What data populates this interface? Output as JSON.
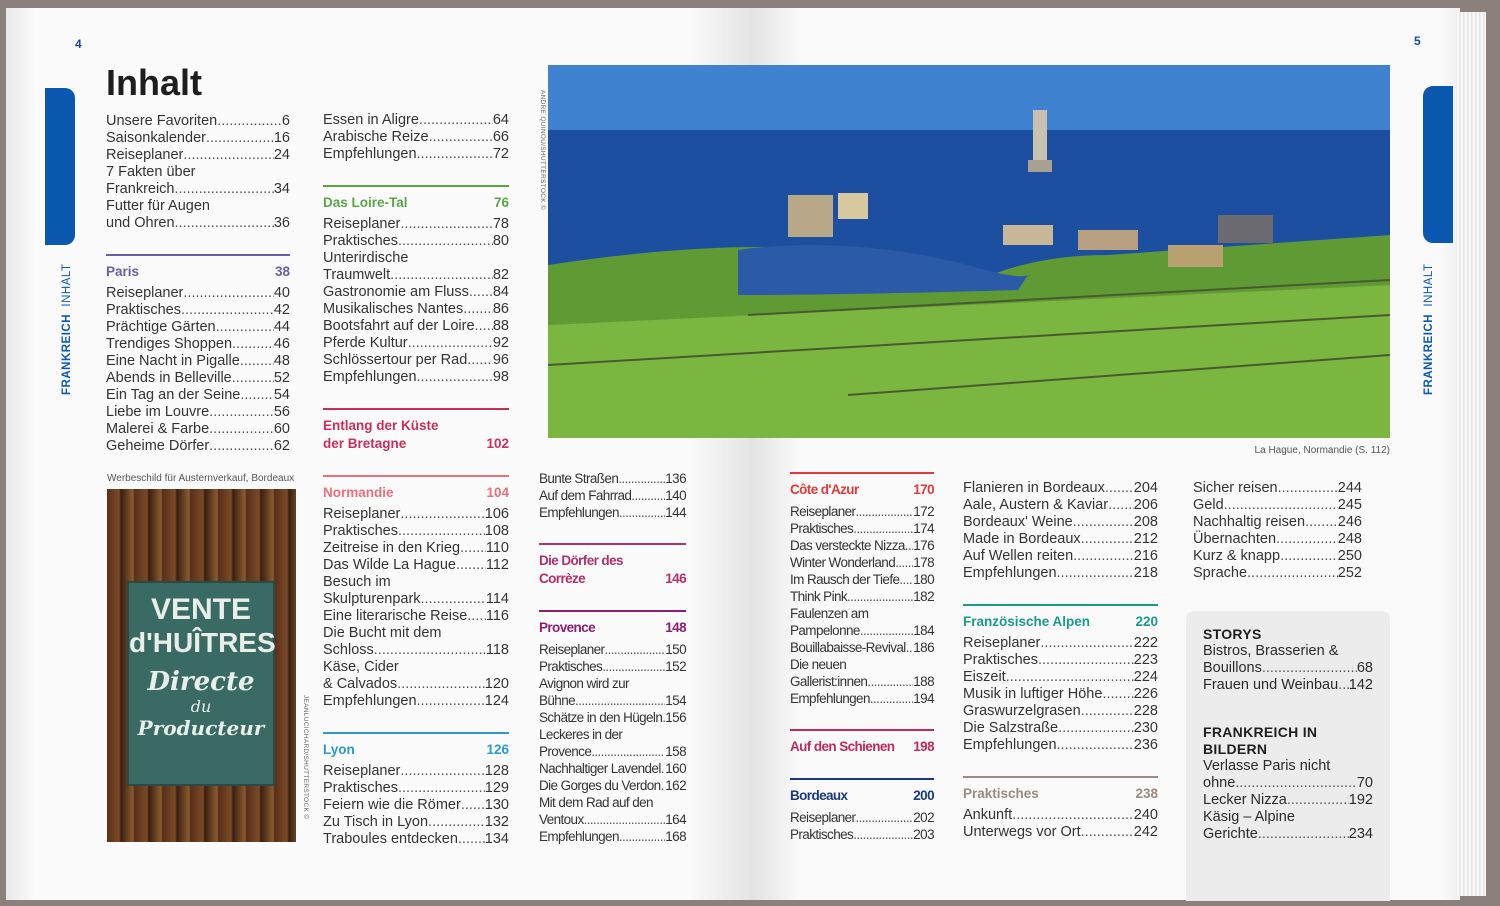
{
  "left_page": {
    "number": "4",
    "title": "Inhalt",
    "tab_label_bold": "FRANKREICH",
    "tab_label": "INHALT",
    "photo_credit": "JEANLUCICHARD/SHUTTERSTOCK ©",
    "image_caption": "Werbeschild für Austernverkauf, Bordeaux",
    "sign_lines": [
      "VENTE",
      "d'HUÎTRES",
      "Directe",
      "du",
      "Producteur"
    ]
  },
  "right_page": {
    "number": "5",
    "tab_label_bold": "FRANKREICH",
    "tab_label": "INHALT",
    "photo_credit": "ANDRE QUINOU/SHUTTERSTOCK ©",
    "photo_caption": "La Hague, Normandie (S. 112)"
  },
  "columns": {
    "c1": [
      {
        "e": [
          [
            "Unsere Favoriten",
            "6"
          ],
          [
            "Saisonkalender",
            "16"
          ],
          [
            "Reiseplaner",
            "24"
          ],
          [
            "7 Fakten über\nFrankreich",
            "34"
          ],
          [
            "Futter für Augen\nund Ohren",
            "36"
          ]
        ]
      },
      {
        "title": "Paris",
        "page": "38",
        "color": "#6b5ea8",
        "e": [
          [
            "Reiseplaner",
            "40"
          ],
          [
            "Praktisches",
            "42"
          ],
          [
            "Prächtige Gärten",
            "44"
          ],
          [
            "Trendiges Shoppen",
            "46"
          ],
          [
            "Eine Nacht in Pigalle",
            "48"
          ],
          [
            "Abends in Belleville",
            "52"
          ],
          [
            "Ein Tag an der Seine",
            "54"
          ],
          [
            "Liebe im Louvre",
            "56"
          ],
          [
            "Malerei & Farbe",
            "60"
          ],
          [
            "Geheime Dörfer",
            "62"
          ]
        ]
      }
    ],
    "c2": [
      {
        "e": [
          [
            "Essen in Aligre",
            "64"
          ],
          [
            "Arabische Reize",
            "66"
          ],
          [
            "Empfehlungen",
            "72"
          ]
        ]
      },
      {
        "title": "Das Loire-Tal",
        "page": "76",
        "color": "#5aa646",
        "e": [
          [
            "Reiseplaner",
            "78"
          ],
          [
            "Praktisches",
            "80"
          ],
          [
            "Unterirdische\nTraumwelt",
            "82"
          ],
          [
            "Gastronomie am Fluss",
            "84"
          ],
          [
            "Musikalisches Nantes",
            "86"
          ],
          [
            "Bootsfahrt auf der Loire",
            "88"
          ],
          [
            "Pferde Kultur",
            "92"
          ],
          [
            "Schlössertour per Rad",
            "96"
          ],
          [
            "Empfehlungen",
            "98"
          ]
        ]
      },
      {
        "title": "Entlang der Küste\nder Bretagne",
        "page": "102",
        "color": "#c8305a",
        "e": []
      },
      {
        "title": "Normandie",
        "page": "104",
        "color": "#e8707a",
        "e": [
          [
            "Reiseplaner",
            "106"
          ],
          [
            "Praktisches",
            "108"
          ],
          [
            "Zeitreise in den Krieg",
            "110"
          ],
          [
            "Das Wilde La Hague",
            "112"
          ],
          [
            "Besuch im\nSkulpturenpark",
            "114"
          ],
          [
            "Eine literarische Reise",
            "116"
          ],
          [
            "Die Bucht mit dem\nSchloss",
            "118"
          ],
          [
            "Käse, Cider\n& Calvados",
            "120"
          ],
          [
            "Empfehlungen",
            "124"
          ]
        ]
      },
      {
        "title": "Lyon",
        "page": "126",
        "color": "#2a9ac8",
        "e": [
          [
            "Reiseplaner",
            "128"
          ],
          [
            "Praktisches",
            "129"
          ],
          [
            "Feiern wie die Römer",
            "130"
          ],
          [
            "Zu Tisch in Lyon",
            "132"
          ],
          [
            "Traboules entdecken",
            "134"
          ]
        ]
      }
    ],
    "c3": [
      {
        "e": [
          [
            "Bunte Straßen",
            "136"
          ],
          [
            "Auf dem Fahrrad",
            "140"
          ],
          [
            "Empfehlungen",
            "144"
          ]
        ]
      },
      {
        "title": "Die Dörfer des\nCorrèze",
        "page": "146",
        "color": "#b0306a",
        "e": []
      },
      {
        "title": "Provence",
        "page": "148",
        "color": "#8a2070",
        "e": [
          [
            "Reiseplaner",
            "150"
          ],
          [
            "Praktisches",
            "152"
          ],
          [
            "Avignon wird zur\nBühne",
            "154"
          ],
          [
            "Schätze in den Hügeln",
            "156"
          ],
          [
            "Leckeres in der\nProvence",
            "158"
          ],
          [
            "Nachhaltiger Lavendel",
            "160"
          ],
          [
            "Die Gorges du Verdon",
            "162"
          ],
          [
            "Mit dem Rad auf den\nVentoux",
            "164"
          ],
          [
            "Empfehlungen",
            "168"
          ]
        ]
      }
    ],
    "c4": [
      {
        "title": "Côte d'Azur",
        "page": "170",
        "color": "#e03a3a",
        "e": [
          [
            "Reiseplaner",
            "172"
          ],
          [
            "Praktisches",
            "174"
          ],
          [
            "Das versteckte Nizza",
            "176"
          ],
          [
            "Winter Wonderland",
            "178"
          ],
          [
            "Im Rausch der Tiefe",
            "180"
          ],
          [
            "Think Pink",
            "182"
          ],
          [
            "Faulenzen am\nPampelonne",
            "184"
          ],
          [
            "Bouillabaisse-Revival",
            "186"
          ],
          [
            "Die neuen\nGallerist:innen",
            "188"
          ],
          [
            "Empfehlungen",
            "194"
          ]
        ]
      },
      {
        "title": "Auf den Schienen",
        "page": "198",
        "color": "#c02a5a",
        "e": []
      },
      {
        "title": "Bordeaux",
        "page": "200",
        "color": "#1a3a7a",
        "e": [
          [
            "Reiseplaner",
            "202"
          ],
          [
            "Praktisches",
            "203"
          ]
        ]
      }
    ],
    "c5": [
      {
        "e": [
          [
            "Flanieren in Bordeaux",
            "204"
          ],
          [
            "Aale, Austern & Kaviar",
            "206"
          ],
          [
            "Bordeaux' Weine",
            "208"
          ],
          [
            "Made in Bordeaux",
            "212"
          ],
          [
            "Auf Wellen reiten",
            "216"
          ],
          [
            "Empfehlungen",
            "218"
          ]
        ]
      },
      {
        "title": "Französische Alpen",
        "page": "220",
        "color": "#1a9a8a",
        "e": [
          [
            "Reiseplaner",
            "222"
          ],
          [
            "Praktisches",
            "223"
          ],
          [
            "Eiszeit",
            "224"
          ],
          [
            "Musik in luftiger Höhe",
            "226"
          ],
          [
            "Graswurzelgrasen",
            "228"
          ],
          [
            "Die Salzstraße",
            "230"
          ],
          [
            "Empfehlungen",
            "236"
          ]
        ]
      },
      {
        "title": "Praktisches",
        "page": "238",
        "color": "#9a8a80",
        "e": [
          [
            "Ankunft",
            "240"
          ],
          [
            "Unterwegs vor Ort",
            "242"
          ]
        ]
      }
    ],
    "c6": [
      {
        "e": [
          [
            "Sicher reisen",
            "244"
          ],
          [
            "Geld",
            "245"
          ],
          [
            "Nachhaltig reisen",
            "246"
          ],
          [
            "Übernachten",
            "248"
          ],
          [
            "Kurz & knapp",
            "250"
          ],
          [
            "Sprache",
            "252"
          ]
        ]
      }
    ]
  },
  "sidebox": {
    "storys_title": "STORYS",
    "storys": [
      [
        "Bistros, Brasserien &\nBouillons",
        "68"
      ],
      [
        "Frauen und Weinbau",
        "142"
      ]
    ],
    "bilder_title": "FRANKREICH IN\nBILDERN",
    "bilder": [
      [
        "Verlasse Paris nicht\nohne",
        "70"
      ],
      [
        "Lecker Nizza",
        "192"
      ],
      [
        "Käsig – Alpine\nGerichte",
        "234"
      ]
    ]
  },
  "colors": {
    "accent": "#0a58b0"
  }
}
